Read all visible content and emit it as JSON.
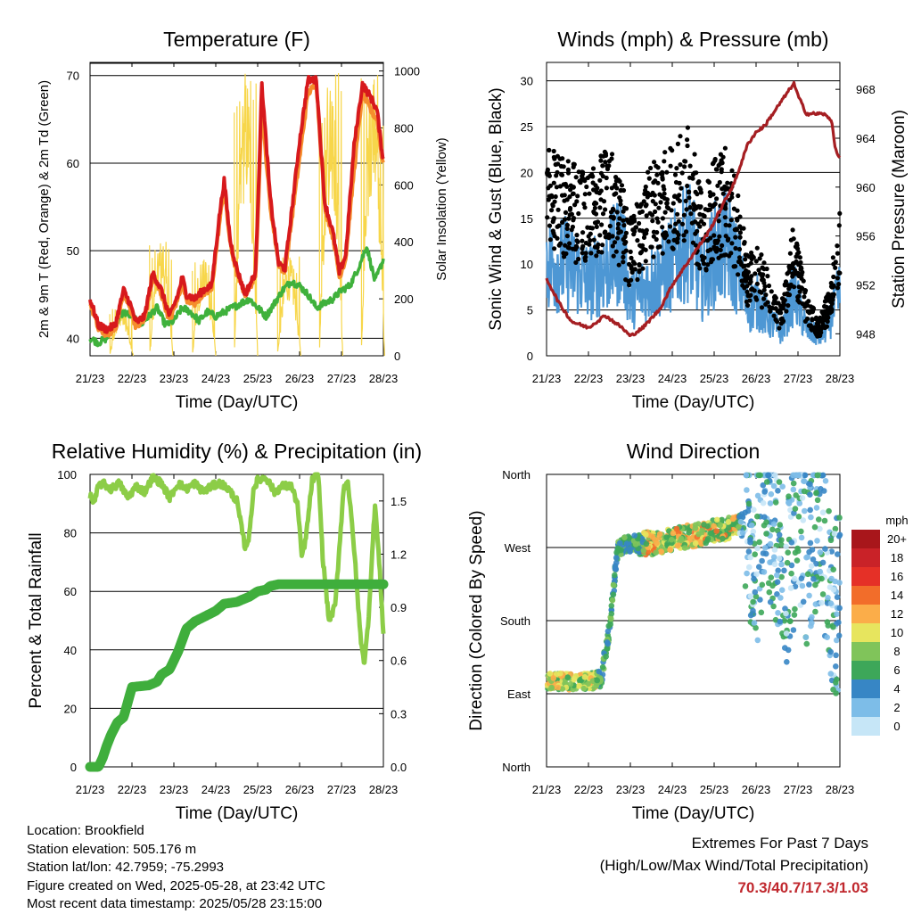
{
  "common": {
    "x_ticks": [
      "21/23",
      "22/23",
      "23/23",
      "24/23",
      "25/23",
      "26/23",
      "27/23",
      "28/23"
    ],
    "x_label": "Time (Day/UTC)"
  },
  "colors": {
    "red": "#d7191c",
    "orange": "#f58d2c",
    "green": "#3fb13c",
    "yellow": "#f7d64a",
    "blue": "#4d97d4",
    "black": "#000000",
    "maroon": "#a51e22",
    "rh": "#8ccd47",
    "precip": "#3fae3c"
  },
  "chart_data": [
    {
      "id": "temperature",
      "type": "line",
      "title": "Temperature (F)",
      "xlabel": "Time (Day/UTC)",
      "ylabel": "2m & 9m T (Red, Orange) & 2m Td (Green)",
      "ylabel_right": "Solar Insolation (Yellow)",
      "ylim": [
        38,
        71.5
      ],
      "yticks": [
        40,
        50,
        60,
        70
      ],
      "ylim_right": [
        0,
        1030
      ],
      "yticks_right": [
        0,
        200,
        400,
        600,
        800,
        1000
      ],
      "grid": true,
      "series": [
        {
          "key": "t2m",
          "color_key": "red",
          "x": [
            0,
            0.2,
            0.4,
            0.6,
            0.8,
            0.95,
            1.1,
            1.3,
            1.5,
            1.7,
            1.9,
            2.1,
            2.2,
            2.3,
            2.5,
            2.7,
            2.9,
            3.1,
            3.2,
            3.35,
            3.5,
            3.7,
            3.95,
            4.1,
            4.3,
            4.5,
            4.65,
            4.8,
            5.0,
            5.2,
            5.4,
            5.6,
            5.8,
            5.95,
            6.1,
            6.3,
            6.5,
            6.7,
            6.85,
            6.95,
            7.0
          ],
          "y": [
            44.5,
            41.5,
            41.0,
            41.5,
            45.5,
            44.0,
            41.8,
            42.5,
            47.5,
            45.5,
            42.5,
            45.0,
            47.0,
            45.0,
            44.5,
            45.5,
            46.0,
            54.5,
            58.0,
            51.0,
            48.0,
            45.0,
            47.5,
            69.0,
            56.0,
            48.5,
            48.0,
            54.0,
            62.5,
            69.5,
            69.5,
            55.5,
            52.0,
            47.5,
            49.5,
            62.0,
            69.0,
            67.5,
            66.0,
            62.0,
            60.5
          ]
        },
        {
          "key": "t9m",
          "color_key": "orange",
          "x": [
            0,
            0.2,
            0.4,
            0.6,
            0.8,
            0.95,
            1.1,
            1.3,
            1.5,
            1.7,
            1.9,
            2.1,
            2.2,
            2.3,
            2.5,
            2.7,
            2.9,
            3.1,
            3.2,
            3.35,
            3.5,
            3.7,
            3.95,
            4.1,
            4.3,
            4.5,
            4.65,
            4.8,
            5.0,
            5.2,
            5.4,
            5.6,
            5.8,
            5.95,
            6.1,
            6.3,
            6.5,
            6.7,
            6.85,
            6.95,
            7.0
          ],
          "y": [
            44.0,
            41.0,
            40.5,
            41.0,
            45.0,
            43.5,
            41.3,
            42.0,
            47.0,
            45.0,
            42.0,
            44.5,
            46.5,
            44.5,
            44.0,
            45.0,
            45.5,
            53.5,
            57.0,
            50.5,
            47.5,
            45.0,
            47.0,
            66.0,
            55.0,
            48.5,
            47.5,
            53.0,
            60.5,
            68.0,
            69.0,
            55.0,
            51.5,
            47.0,
            49.0,
            59.0,
            68.0,
            66.0,
            65.0,
            61.0,
            60.0
          ]
        },
        {
          "key": "td2m",
          "color_key": "green",
          "x": [
            0,
            0.2,
            0.4,
            0.6,
            0.8,
            1.0,
            1.2,
            1.4,
            1.6,
            1.8,
            2.0,
            2.2,
            2.4,
            2.6,
            2.8,
            3.0,
            3.2,
            3.4,
            3.6,
            3.8,
            4.0,
            4.2,
            4.4,
            4.6,
            4.8,
            5.0,
            5.2,
            5.4,
            5.6,
            5.8,
            6.0,
            6.2,
            6.4,
            6.6,
            6.8,
            7.0
          ],
          "y": [
            40.0,
            39.5,
            40.0,
            41.5,
            43.0,
            42.5,
            41.5,
            42.5,
            43.5,
            41.5,
            42.0,
            43.5,
            43.0,
            42.0,
            43.0,
            42.5,
            43.0,
            43.5,
            44.0,
            44.5,
            43.5,
            42.5,
            44.0,
            45.5,
            46.5,
            46.0,
            45.0,
            43.5,
            44.0,
            44.5,
            45.5,
            46.0,
            48.0,
            50.5,
            46.5,
            49.0
          ]
        },
        {
          "key": "solar",
          "color_key": "yellow",
          "axis": "right",
          "peaks_day": [
            0.75,
            1.7,
            2.72,
            3.72,
            4.75,
            5.75,
            6.75
          ],
          "peaks_value": [
            170,
            400,
            340,
            1000,
            350,
            1000,
            1000
          ]
        }
      ]
    },
    {
      "id": "winds",
      "type": "scatter",
      "title": "Winds (mph) & Pressure (mb)",
      "xlabel": "Time (Day/UTC)",
      "ylabel": "Sonic Wind & Gust (Blue, Black)",
      "ylabel_right": "Station Pressure (Maroon)",
      "ylim": [
        0,
        32
      ],
      "yticks": [
        0,
        5,
        10,
        15,
        20,
        25,
        30
      ],
      "ylim_right": [
        946.2,
        970.2
      ],
      "yticks_right": [
        948,
        952,
        956,
        960,
        964,
        968
      ],
      "grid": true,
      "series": [
        {
          "key": "wind",
          "color_key": "blue",
          "mean_x": [
            0,
            0.5,
            1.0,
            1.5,
            1.8,
            2.0,
            2.5,
            3.0,
            3.4,
            3.7,
            4.0,
            4.3,
            4.6,
            4.8,
            5.0,
            5.3,
            5.6,
            5.9,
            6.2,
            6.5,
            6.7,
            7.0
          ],
          "mean_y": [
            10,
            10,
            8,
            10,
            12,
            6,
            8,
            10,
            13,
            8,
            11,
            12,
            9,
            5,
            6,
            4,
            2.5,
            7,
            3,
            2,
            3,
            7
          ]
        },
        {
          "key": "gust",
          "color_key": "black",
          "mean_x": [
            0,
            0.5,
            1.0,
            1.5,
            1.8,
            2.0,
            2.5,
            3.0,
            3.4,
            3.7,
            4.0,
            4.3,
            4.6,
            4.8,
            5.0,
            5.3,
            5.6,
            5.9,
            6.2,
            6.5,
            6.7,
            7.0
          ],
          "mean_y": [
            18,
            16,
            15,
            17,
            14,
            11,
            16,
            17,
            19,
            13,
            16,
            17,
            13,
            8,
            9,
            7,
            4,
            11,
            5,
            3,
            5,
            12
          ]
        },
        {
          "key": "pressure",
          "color_key": "maroon",
          "axis": "right",
          "x": [
            0,
            0.3,
            0.6,
            1.0,
            1.4,
            1.8,
            2.0,
            2.3,
            2.7,
            3.0,
            3.3,
            3.6,
            3.9,
            4.2,
            4.5,
            4.8,
            5.0,
            5.2,
            5.5,
            5.9,
            6.0,
            6.2,
            6.4,
            6.6,
            6.8,
            6.9,
            7.0
          ],
          "y": [
            952.5,
            950.5,
            949.0,
            948.5,
            949.5,
            948.5,
            947.8,
            948.5,
            950.0,
            952.0,
            953.5,
            955.0,
            956.5,
            958.5,
            960.5,
            963.5,
            964.5,
            965.0,
            966.5,
            968.5,
            967.5,
            966.0,
            966.0,
            966.0,
            965.5,
            963.0,
            962.3
          ]
        }
      ]
    },
    {
      "id": "humidity",
      "type": "line",
      "title": "Relative Humidity (%) & Precipitation (in)",
      "xlabel": "Time (Day/UTC)",
      "ylabel": "Percent & Total Rainfall",
      "ylim": [
        0,
        100
      ],
      "yticks": [
        0,
        20,
        40,
        60,
        80,
        100
      ],
      "ylim_right": [
        0,
        1.65
      ],
      "yticks_right": [
        "0.0",
        "0.3",
        "0.6",
        "0.9",
        "1.2",
        "1.5"
      ],
      "grid": true,
      "series": [
        {
          "key": "rh",
          "color_key": "rh",
          "x": [
            0,
            0.1,
            0.2,
            0.3,
            0.5,
            0.7,
            0.9,
            1.1,
            1.3,
            1.5,
            1.7,
            1.9,
            2.1,
            2.3,
            2.5,
            2.7,
            2.9,
            3.1,
            3.3,
            3.5,
            3.7,
            3.8,
            3.9,
            4.0,
            4.2,
            4.4,
            4.6,
            4.8,
            4.95,
            5.05,
            5.15,
            5.3,
            5.45,
            5.55,
            5.7,
            5.85,
            5.95,
            6.05,
            6.15,
            6.3,
            6.45,
            6.55,
            6.65,
            6.8,
            6.9,
            7.0
          ],
          "y": [
            93,
            90,
            96,
            97,
            95,
            97,
            92,
            96,
            94,
            99,
            97,
            92,
            97,
            95,
            97,
            94,
            96,
            97,
            95,
            91,
            75,
            79,
            95,
            98,
            99,
            94,
            96,
            96,
            90,
            72,
            78,
            98,
            100,
            72,
            50,
            55,
            75,
            95,
            98,
            75,
            45,
            35,
            52,
            90,
            70,
            46
          ]
        },
        {
          "key": "precip",
          "color_key": "precip",
          "x": [
            0,
            0.2,
            0.3,
            0.4,
            0.5,
            0.65,
            0.8,
            1.0,
            1.4,
            1.6,
            1.7,
            1.9,
            2.1,
            2.3,
            2.5,
            2.75,
            3.0,
            3.2,
            3.5,
            3.8,
            4.0,
            4.2,
            4.3,
            4.5,
            7.0
          ],
          "y": [
            0,
            0,
            0.05,
            0.12,
            0.18,
            0.25,
            0.28,
            0.45,
            0.46,
            0.48,
            0.52,
            0.55,
            0.65,
            0.78,
            0.82,
            0.85,
            0.88,
            0.92,
            0.93,
            0.96,
            0.99,
            1.0,
            1.02,
            1.03,
            1.03
          ]
        }
      ]
    },
    {
      "id": "direction",
      "type": "scatter",
      "title": "Wind Direction",
      "xlabel": "Time (Day/UTC)",
      "ylabel": "Direction (Colored By Speed)",
      "yticks": [
        "North",
        "East",
        "South",
        "West",
        "North"
      ],
      "ylim": [
        0,
        360
      ],
      "grid": true,
      "mean_x": [
        0,
        0.5,
        1.0,
        1.3,
        1.5,
        1.7,
        2.0,
        2.5,
        3.0,
        3.5,
        4.0,
        4.5,
        4.8,
        5.0,
        5.2,
        5.5,
        5.8,
        6.0,
        6.2,
        6.5,
        6.8,
        7.0
      ],
      "mean_y": [
        105,
        105,
        105,
        108,
        170,
        270,
        275,
        275,
        280,
        285,
        290,
        295,
        300,
        250,
        330,
        280,
        220,
        330,
        250,
        310,
        200,
        200
      ],
      "legend": {
        "title": "mph",
        "labels": [
          "20+",
          "18",
          "16",
          "14",
          "12",
          "10",
          "8",
          "6",
          "4",
          "2",
          "0"
        ],
        "colors": [
          "#a8161b",
          "#c92228",
          "#e53027",
          "#f26d2a",
          "#fbad49",
          "#e7e55e",
          "#80c45a",
          "#3da759",
          "#3786c5",
          "#7dbde8",
          "#c6e6f7"
        ]
      }
    }
  ],
  "info": {
    "location": "Location: Brookfield",
    "elevation": "Station elevation: 505.176 m",
    "latlon": "Station lat/lon: 42.7959; -75.2993",
    "created": "Figure created on Wed, 2025-05-28, at 23:42 UTC",
    "timestamp": "Most recent data timestamp: 2025/05/28 23:15:00"
  },
  "extremes": {
    "title": "Extremes For Past 7 Days",
    "subtitle": "(High/Low/Max Wind/Total Precipitation)",
    "values": "70.3/40.7/17.3/1.03"
  }
}
